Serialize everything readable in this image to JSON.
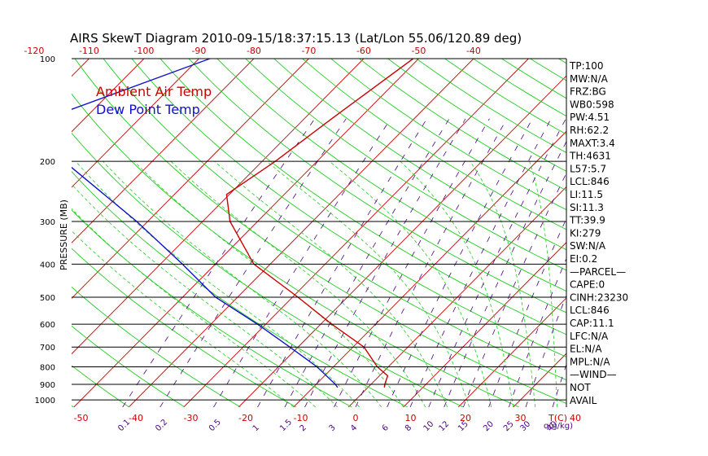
{
  "chart_data": {
    "type": "line",
    "title": "AIRS SkewT Diagram 2010-09-15/18:37:15.13 (Lat/Lon 55.06/120.89 deg)",
    "ylabel": "PRESSURE (MB)",
    "pressure_ticks": [
      {
        "value": 100,
        "label": "100"
      },
      {
        "value": 200,
        "label": "200"
      },
      {
        "value": 300,
        "label": "300"
      },
      {
        "value": 400,
        "label": "400"
      },
      {
        "value": 500,
        "label": "500"
      },
      {
        "value": 600,
        "label": "600"
      },
      {
        "value": 700,
        "label": "700"
      },
      {
        "value": 800,
        "label": "800"
      },
      {
        "value": 900,
        "label": "900"
      },
      {
        "value": 1000,
        "label": "1000"
      }
    ],
    "top_temp_ticks": [
      "-120",
      "-110",
      "-100",
      "-90",
      "-80",
      "-70",
      "-60",
      "-50",
      "-40"
    ],
    "bottom_temp_ticks": [
      "-50",
      "-40",
      "-30",
      "-20",
      "-10",
      "0",
      "10",
      "20",
      "30",
      "40"
    ],
    "bottom_temp_unit": "T(C)",
    "mixing_ratio_ticks": [
      "0.1",
      "0.2",
      "0.5",
      "1",
      "1.5",
      "2",
      "3",
      "4",
      "6",
      "8",
      "10",
      "12",
      "15",
      "20",
      "25",
      "30",
      "40"
    ],
    "mixing_ratio_unit": "q(g/kg)",
    "legend": {
      "air": "Ambient Air Temp",
      "dew": "Dew Point Temp"
    },
    "series": [
      {
        "name": "Ambient Air Temp",
        "color": "#cc0000",
        "points": [
          {
            "p": 100,
            "t": -51.0
          },
          {
            "p": 150,
            "t": -55.0
          },
          {
            "p": 200,
            "t": -57.6
          },
          {
            "p": 250,
            "t": -60.5
          },
          {
            "p": 300,
            "t": -55.0
          },
          {
            "p": 400,
            "t": -43.0
          },
          {
            "p": 500,
            "t": -29.0
          },
          {
            "p": 600,
            "t": -18.0
          },
          {
            "p": 700,
            "t": -8.0
          },
          {
            "p": 800,
            "t": -2.0
          },
          {
            "p": 850,
            "t": 1.5
          },
          {
            "p": 900,
            "t": 2.5
          },
          {
            "p": 920,
            "t": 3.0
          }
        ]
      },
      {
        "name": "Dew Point Temp",
        "color": "#1010cc",
        "points": [
          {
            "p": 100,
            "t": -88.0
          },
          {
            "p": 150,
            "t": -107.0
          },
          {
            "p": 200,
            "t": -96.0
          },
          {
            "p": 300,
            "t": -72.0
          },
          {
            "p": 400,
            "t": -56.0
          },
          {
            "p": 500,
            "t": -44.0
          },
          {
            "p": 600,
            "t": -31.5
          },
          {
            "p": 700,
            "t": -21.5
          },
          {
            "p": 800,
            "t": -13.0
          },
          {
            "p": 900,
            "t": -6.5
          },
          {
            "p": 920,
            "t": -5.5
          }
        ]
      }
    ]
  },
  "indices": [
    "TP:100",
    "MW:N/A",
    "FRZ:BG",
    "WB0:598",
    "PW:4.51",
    "RH:62.2",
    "MAXT:3.4",
    "TH:4631",
    "L57:5.7",
    "LCL:846",
    "LI:11.5",
    "SI:11.3",
    "TT:39.9",
    "KI:279",
    "SW:N/A",
    "EI:0.2",
    "—PARCEL—",
    "CAPE:0",
    "CINH:23230",
    "LCL:846",
    "CAP:11.1",
    "LFC:N/A",
    "EL:N/A",
    "MPL:N/A",
    "—WIND—",
    "NOT",
    "AVAIL"
  ]
}
